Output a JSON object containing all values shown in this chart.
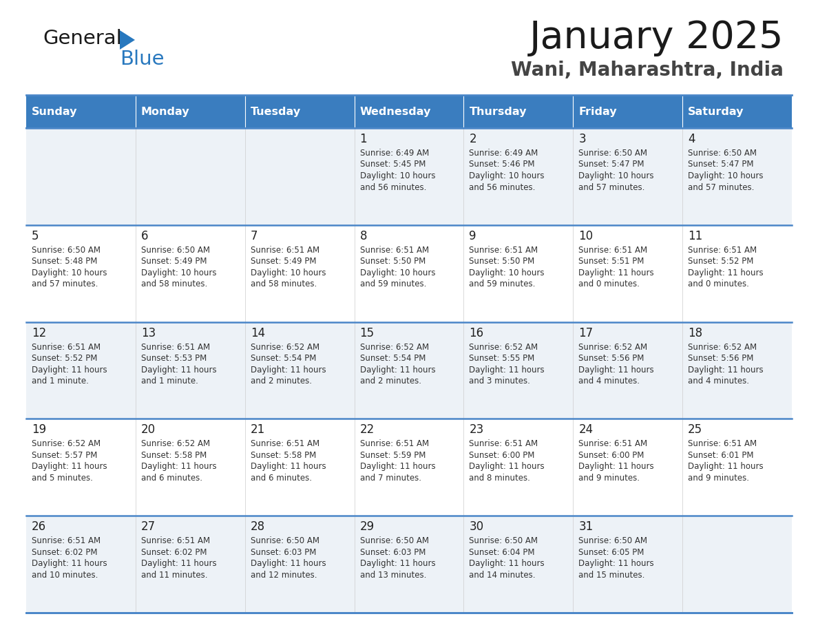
{
  "title": "January 2025",
  "subtitle": "Wani, Maharashtra, India",
  "header_color": "#3a7dbf",
  "header_text_color": "#ffffff",
  "row_bg_colors": [
    "#edf2f7",
    "#ffffff"
  ],
  "border_color": "#4a86c8",
  "days_of_week": [
    "Sunday",
    "Monday",
    "Tuesday",
    "Wednesday",
    "Thursday",
    "Friday",
    "Saturday"
  ],
  "weeks": [
    [
      {
        "day": "",
        "sunrise": "",
        "sunset": "",
        "daylight": ""
      },
      {
        "day": "",
        "sunrise": "",
        "sunset": "",
        "daylight": ""
      },
      {
        "day": "",
        "sunrise": "",
        "sunset": "",
        "daylight": ""
      },
      {
        "day": "1",
        "sunrise": "Sunrise: 6:49 AM",
        "sunset": "Sunset: 5:45 PM",
        "daylight": "Daylight: 10 hours\nand 56 minutes."
      },
      {
        "day": "2",
        "sunrise": "Sunrise: 6:49 AM",
        "sunset": "Sunset: 5:46 PM",
        "daylight": "Daylight: 10 hours\nand 56 minutes."
      },
      {
        "day": "3",
        "sunrise": "Sunrise: 6:50 AM",
        "sunset": "Sunset: 5:47 PM",
        "daylight": "Daylight: 10 hours\nand 57 minutes."
      },
      {
        "day": "4",
        "sunrise": "Sunrise: 6:50 AM",
        "sunset": "Sunset: 5:47 PM",
        "daylight": "Daylight: 10 hours\nand 57 minutes."
      }
    ],
    [
      {
        "day": "5",
        "sunrise": "Sunrise: 6:50 AM",
        "sunset": "Sunset: 5:48 PM",
        "daylight": "Daylight: 10 hours\nand 57 minutes."
      },
      {
        "day": "6",
        "sunrise": "Sunrise: 6:50 AM",
        "sunset": "Sunset: 5:49 PM",
        "daylight": "Daylight: 10 hours\nand 58 minutes."
      },
      {
        "day": "7",
        "sunrise": "Sunrise: 6:51 AM",
        "sunset": "Sunset: 5:49 PM",
        "daylight": "Daylight: 10 hours\nand 58 minutes."
      },
      {
        "day": "8",
        "sunrise": "Sunrise: 6:51 AM",
        "sunset": "Sunset: 5:50 PM",
        "daylight": "Daylight: 10 hours\nand 59 minutes."
      },
      {
        "day": "9",
        "sunrise": "Sunrise: 6:51 AM",
        "sunset": "Sunset: 5:50 PM",
        "daylight": "Daylight: 10 hours\nand 59 minutes."
      },
      {
        "day": "10",
        "sunrise": "Sunrise: 6:51 AM",
        "sunset": "Sunset: 5:51 PM",
        "daylight": "Daylight: 11 hours\nand 0 minutes."
      },
      {
        "day": "11",
        "sunrise": "Sunrise: 6:51 AM",
        "sunset": "Sunset: 5:52 PM",
        "daylight": "Daylight: 11 hours\nand 0 minutes."
      }
    ],
    [
      {
        "day": "12",
        "sunrise": "Sunrise: 6:51 AM",
        "sunset": "Sunset: 5:52 PM",
        "daylight": "Daylight: 11 hours\nand 1 minute."
      },
      {
        "day": "13",
        "sunrise": "Sunrise: 6:51 AM",
        "sunset": "Sunset: 5:53 PM",
        "daylight": "Daylight: 11 hours\nand 1 minute."
      },
      {
        "day": "14",
        "sunrise": "Sunrise: 6:52 AM",
        "sunset": "Sunset: 5:54 PM",
        "daylight": "Daylight: 11 hours\nand 2 minutes."
      },
      {
        "day": "15",
        "sunrise": "Sunrise: 6:52 AM",
        "sunset": "Sunset: 5:54 PM",
        "daylight": "Daylight: 11 hours\nand 2 minutes."
      },
      {
        "day": "16",
        "sunrise": "Sunrise: 6:52 AM",
        "sunset": "Sunset: 5:55 PM",
        "daylight": "Daylight: 11 hours\nand 3 minutes."
      },
      {
        "day": "17",
        "sunrise": "Sunrise: 6:52 AM",
        "sunset": "Sunset: 5:56 PM",
        "daylight": "Daylight: 11 hours\nand 4 minutes."
      },
      {
        "day": "18",
        "sunrise": "Sunrise: 6:52 AM",
        "sunset": "Sunset: 5:56 PM",
        "daylight": "Daylight: 11 hours\nand 4 minutes."
      }
    ],
    [
      {
        "day": "19",
        "sunrise": "Sunrise: 6:52 AM",
        "sunset": "Sunset: 5:57 PM",
        "daylight": "Daylight: 11 hours\nand 5 minutes."
      },
      {
        "day": "20",
        "sunrise": "Sunrise: 6:52 AM",
        "sunset": "Sunset: 5:58 PM",
        "daylight": "Daylight: 11 hours\nand 6 minutes."
      },
      {
        "day": "21",
        "sunrise": "Sunrise: 6:51 AM",
        "sunset": "Sunset: 5:58 PM",
        "daylight": "Daylight: 11 hours\nand 6 minutes."
      },
      {
        "day": "22",
        "sunrise": "Sunrise: 6:51 AM",
        "sunset": "Sunset: 5:59 PM",
        "daylight": "Daylight: 11 hours\nand 7 minutes."
      },
      {
        "day": "23",
        "sunrise": "Sunrise: 6:51 AM",
        "sunset": "Sunset: 6:00 PM",
        "daylight": "Daylight: 11 hours\nand 8 minutes."
      },
      {
        "day": "24",
        "sunrise": "Sunrise: 6:51 AM",
        "sunset": "Sunset: 6:00 PM",
        "daylight": "Daylight: 11 hours\nand 9 minutes."
      },
      {
        "day": "25",
        "sunrise": "Sunrise: 6:51 AM",
        "sunset": "Sunset: 6:01 PM",
        "daylight": "Daylight: 11 hours\nand 9 minutes."
      }
    ],
    [
      {
        "day": "26",
        "sunrise": "Sunrise: 6:51 AM",
        "sunset": "Sunset: 6:02 PM",
        "daylight": "Daylight: 11 hours\nand 10 minutes."
      },
      {
        "day": "27",
        "sunrise": "Sunrise: 6:51 AM",
        "sunset": "Sunset: 6:02 PM",
        "daylight": "Daylight: 11 hours\nand 11 minutes."
      },
      {
        "day": "28",
        "sunrise": "Sunrise: 6:50 AM",
        "sunset": "Sunset: 6:03 PM",
        "daylight": "Daylight: 11 hours\nand 12 minutes."
      },
      {
        "day": "29",
        "sunrise": "Sunrise: 6:50 AM",
        "sunset": "Sunset: 6:03 PM",
        "daylight": "Daylight: 11 hours\nand 13 minutes."
      },
      {
        "day": "30",
        "sunrise": "Sunrise: 6:50 AM",
        "sunset": "Sunset: 6:04 PM",
        "daylight": "Daylight: 11 hours\nand 14 minutes."
      },
      {
        "day": "31",
        "sunrise": "Sunrise: 6:50 AM",
        "sunset": "Sunset: 6:05 PM",
        "daylight": "Daylight: 11 hours\nand 15 minutes."
      },
      {
        "day": "",
        "sunrise": "",
        "sunset": "",
        "daylight": ""
      }
    ]
  ],
  "logo_general_color": "#1a1a1a",
  "logo_blue_color": "#2878be",
  "logo_triangle_color": "#2878be"
}
